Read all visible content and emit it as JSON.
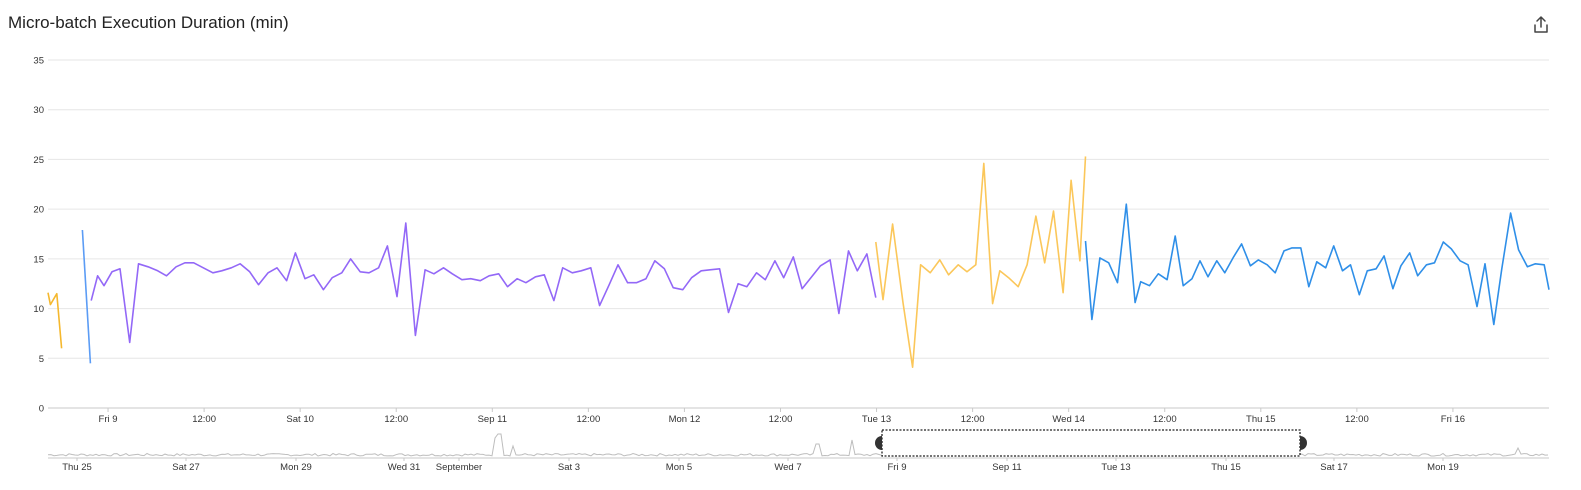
{
  "header": {
    "title": "Micro-batch Execution Duration (min)",
    "export_icon": "share-export-icon"
  },
  "chart_data": {
    "type": "line",
    "title": "Micro-batch Execution Duration (min)",
    "xlabel": "",
    "ylabel": "",
    "ylim": [
      0,
      35
    ],
    "yticks": [
      0,
      5,
      10,
      15,
      20,
      25,
      30,
      35
    ],
    "x_range_hours": [
      -7.5,
      180
    ],
    "x_ticks": [
      {
        "label": "Fri 9",
        "h": 0
      },
      {
        "label": "12:00",
        "h": 12
      },
      {
        "label": "Sat 10",
        "h": 24
      },
      {
        "label": "12:00",
        "h": 36
      },
      {
        "label": "Sep 11",
        "h": 48
      },
      {
        "label": "12:00",
        "h": 60
      },
      {
        "label": "Mon 12",
        "h": 72
      },
      {
        "label": "12:00",
        "h": 84
      },
      {
        "label": "Tue 13",
        "h": 96
      },
      {
        "label": "12:00",
        "h": 108
      },
      {
        "label": "Wed 14",
        "h": 120
      },
      {
        "label": "12:00",
        "h": 132
      },
      {
        "label": "Thu 15",
        "h": 144
      },
      {
        "label": "12:00",
        "h": 156
      },
      {
        "label": "Fri 16",
        "h": 168
      }
    ],
    "grid": true,
    "legend": "none",
    "series": [
      {
        "color": "#f5b82e",
        "points": [
          [
            -7.5,
            11.6
          ],
          [
            -7.2,
            10.4
          ],
          [
            -6.4,
            11.5
          ],
          [
            -5.8,
            6.0
          ]
        ]
      },
      {
        "color": "#5b9cf5",
        "points": [
          [
            -3.2,
            17.9
          ],
          [
            -2.2,
            4.5
          ]
        ]
      },
      {
        "color": "#9368f7",
        "points": [
          [
            -2.1,
            10.8
          ],
          [
            -1.3,
            13.3
          ],
          [
            -0.5,
            12.3
          ],
          [
            0.5,
            13.7
          ],
          [
            1.5,
            14.0
          ],
          [
            2.7,
            6.6
          ],
          [
            3.8,
            14.5
          ],
          [
            5.0,
            14.2
          ],
          [
            6.2,
            13.8
          ],
          [
            7.3,
            13.3
          ],
          [
            8.5,
            14.2
          ],
          [
            9.6,
            14.6
          ],
          [
            10.7,
            14.6
          ],
          [
            11.9,
            14.1
          ],
          [
            13.1,
            13.6
          ],
          [
            14.2,
            13.8
          ],
          [
            15.4,
            14.1
          ],
          [
            16.5,
            14.5
          ],
          [
            17.7,
            13.7
          ],
          [
            18.8,
            12.4
          ],
          [
            20.0,
            13.6
          ],
          [
            21.1,
            14.1
          ],
          [
            22.3,
            12.8
          ],
          [
            23.4,
            15.6
          ],
          [
            24.6,
            13.0
          ],
          [
            25.7,
            13.4
          ],
          [
            26.9,
            11.9
          ],
          [
            28.0,
            13.1
          ],
          [
            29.2,
            13.6
          ],
          [
            30.3,
            15.0
          ],
          [
            31.5,
            13.7
          ],
          [
            32.6,
            13.6
          ],
          [
            33.8,
            14.1
          ],
          [
            34.9,
            16.3
          ],
          [
            36.1,
            11.2
          ],
          [
            37.2,
            18.6
          ],
          [
            38.4,
            7.3
          ],
          [
            39.6,
            13.9
          ],
          [
            40.7,
            13.5
          ],
          [
            41.9,
            14.1
          ],
          [
            43.0,
            13.5
          ],
          [
            44.2,
            12.9
          ],
          [
            45.3,
            13.0
          ],
          [
            46.5,
            12.8
          ],
          [
            47.6,
            13.3
          ],
          [
            48.8,
            13.5
          ],
          [
            49.9,
            12.2
          ],
          [
            51.1,
            13.0
          ],
          [
            52.2,
            12.6
          ],
          [
            53.4,
            13.2
          ],
          [
            54.5,
            13.4
          ],
          [
            55.7,
            10.8
          ],
          [
            56.8,
            14.1
          ],
          [
            58.0,
            13.6
          ],
          [
            59.1,
            13.8
          ],
          [
            60.3,
            14.1
          ],
          [
            61.4,
            10.3
          ],
          [
            62.6,
            12.4
          ],
          [
            63.7,
            14.4
          ],
          [
            64.9,
            12.6
          ],
          [
            66.0,
            12.6
          ],
          [
            67.2,
            13.0
          ],
          [
            68.3,
            14.8
          ],
          [
            69.5,
            14.0
          ],
          [
            70.6,
            12.1
          ],
          [
            71.8,
            11.9
          ],
          [
            72.9,
            13.1
          ],
          [
            74.1,
            13.8
          ],
          [
            75.2,
            13.9
          ],
          [
            76.4,
            14.0
          ],
          [
            77.5,
            9.6
          ],
          [
            78.7,
            12.5
          ],
          [
            79.8,
            12.2
          ],
          [
            81.0,
            13.6
          ],
          [
            82.1,
            12.9
          ],
          [
            83.3,
            14.8
          ],
          [
            84.4,
            13.1
          ],
          [
            85.6,
            15.2
          ],
          [
            86.7,
            12.0
          ],
          [
            87.9,
            13.2
          ],
          [
            89.0,
            14.3
          ],
          [
            90.2,
            14.9
          ],
          [
            91.3,
            9.5
          ],
          [
            92.5,
            15.8
          ],
          [
            93.6,
            13.8
          ],
          [
            94.8,
            15.5
          ],
          [
            95.9,
            11.1
          ]
        ]
      },
      {
        "color": "#fbc75a",
        "points": [
          [
            95.9,
            16.7
          ],
          [
            96.8,
            10.9
          ],
          [
            98.0,
            18.5
          ],
          [
            99.3,
            10.6
          ],
          [
            100.5,
            4.1
          ],
          [
            101.5,
            14.4
          ],
          [
            102.7,
            13.6
          ],
          [
            103.9,
            14.9
          ],
          [
            105.0,
            13.4
          ],
          [
            106.2,
            14.4
          ],
          [
            107.3,
            13.7
          ],
          [
            108.4,
            14.4
          ],
          [
            109.4,
            24.6
          ],
          [
            110.5,
            10.5
          ],
          [
            111.4,
            13.8
          ],
          [
            112.5,
            13.1
          ],
          [
            113.7,
            12.2
          ],
          [
            114.8,
            14.4
          ],
          [
            115.9,
            19.3
          ],
          [
            117.0,
            14.6
          ],
          [
            118.1,
            19.8
          ],
          [
            119.3,
            11.6
          ],
          [
            120.3,
            22.9
          ],
          [
            121.4,
            14.8
          ],
          [
            122.1,
            25.3
          ]
        ]
      },
      {
        "color": "#2f8fe8",
        "points": [
          [
            122.1,
            16.8
          ],
          [
            122.9,
            8.9
          ],
          [
            123.9,
            15.1
          ],
          [
            125.0,
            14.6
          ],
          [
            126.1,
            12.6
          ],
          [
            127.2,
            20.5
          ],
          [
            128.3,
            10.6
          ],
          [
            129.0,
            12.7
          ],
          [
            130.1,
            12.3
          ],
          [
            131.2,
            13.5
          ],
          [
            132.3,
            12.9
          ],
          [
            133.3,
            17.3
          ],
          [
            134.3,
            12.3
          ],
          [
            135.4,
            13.0
          ],
          [
            136.4,
            14.8
          ],
          [
            137.4,
            13.2
          ],
          [
            138.5,
            14.8
          ],
          [
            139.5,
            13.6
          ],
          [
            140.6,
            15.2
          ],
          [
            141.6,
            16.5
          ],
          [
            142.7,
            14.3
          ],
          [
            143.7,
            14.9
          ],
          [
            144.8,
            14.4
          ],
          [
            145.8,
            13.6
          ],
          [
            146.9,
            15.8
          ],
          [
            147.9,
            16.1
          ],
          [
            149.0,
            16.1
          ],
          [
            150.0,
            12.2
          ],
          [
            151.0,
            14.7
          ],
          [
            152.1,
            14.1
          ],
          [
            153.1,
            16.3
          ],
          [
            154.2,
            13.8
          ],
          [
            155.2,
            14.4
          ],
          [
            156.3,
            11.4
          ],
          [
            157.3,
            13.8
          ],
          [
            158.4,
            14.0
          ],
          [
            159.4,
            15.3
          ],
          [
            160.5,
            12.0
          ],
          [
            161.5,
            14.3
          ],
          [
            162.6,
            15.6
          ],
          [
            163.6,
            13.3
          ],
          [
            164.7,
            14.4
          ],
          [
            165.7,
            14.6
          ],
          [
            166.8,
            16.7
          ],
          [
            167.8,
            16.0
          ],
          [
            168.9,
            14.8
          ],
          [
            169.9,
            14.4
          ],
          [
            171.0,
            10.2
          ],
          [
            172.0,
            14.5
          ],
          [
            173.1,
            8.4
          ],
          [
            174.1,
            14.0
          ],
          [
            175.2,
            19.6
          ],
          [
            176.2,
            15.9
          ],
          [
            177.3,
            14.2
          ],
          [
            178.3,
            14.5
          ],
          [
            179.4,
            14.4
          ],
          [
            180.0,
            11.9
          ]
        ]
      }
    ],
    "navigator": {
      "ticks": [
        "Thu 25",
        "Sat 27",
        "Mon 29",
        "Wed 31",
        "September",
        "Sat 3",
        "Mon 5",
        "Wed 7",
        "Fri 9",
        "Sep 11",
        "Tue 13",
        "Thu 15",
        "Sat 17",
        "Mon 19"
      ]
    }
  }
}
